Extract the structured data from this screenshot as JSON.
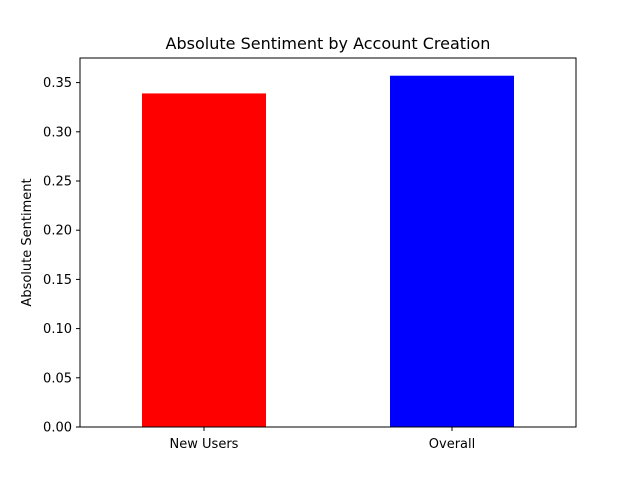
{
  "chart_data": {
    "type": "bar",
    "title": "Absolute Sentiment by Account Creation",
    "xlabel": "",
    "ylabel": "Absolute Sentiment",
    "categories": [
      "New Users",
      "Overall"
    ],
    "values": [
      0.339,
      0.357
    ],
    "colors": [
      "#ff0000",
      "#0000ff"
    ],
    "ylim": [
      0,
      0.375
    ],
    "yticks": [
      "0.00",
      "0.05",
      "0.10",
      "0.15",
      "0.20",
      "0.25",
      "0.30",
      "0.35"
    ],
    "grid": false,
    "legend": "none"
  }
}
